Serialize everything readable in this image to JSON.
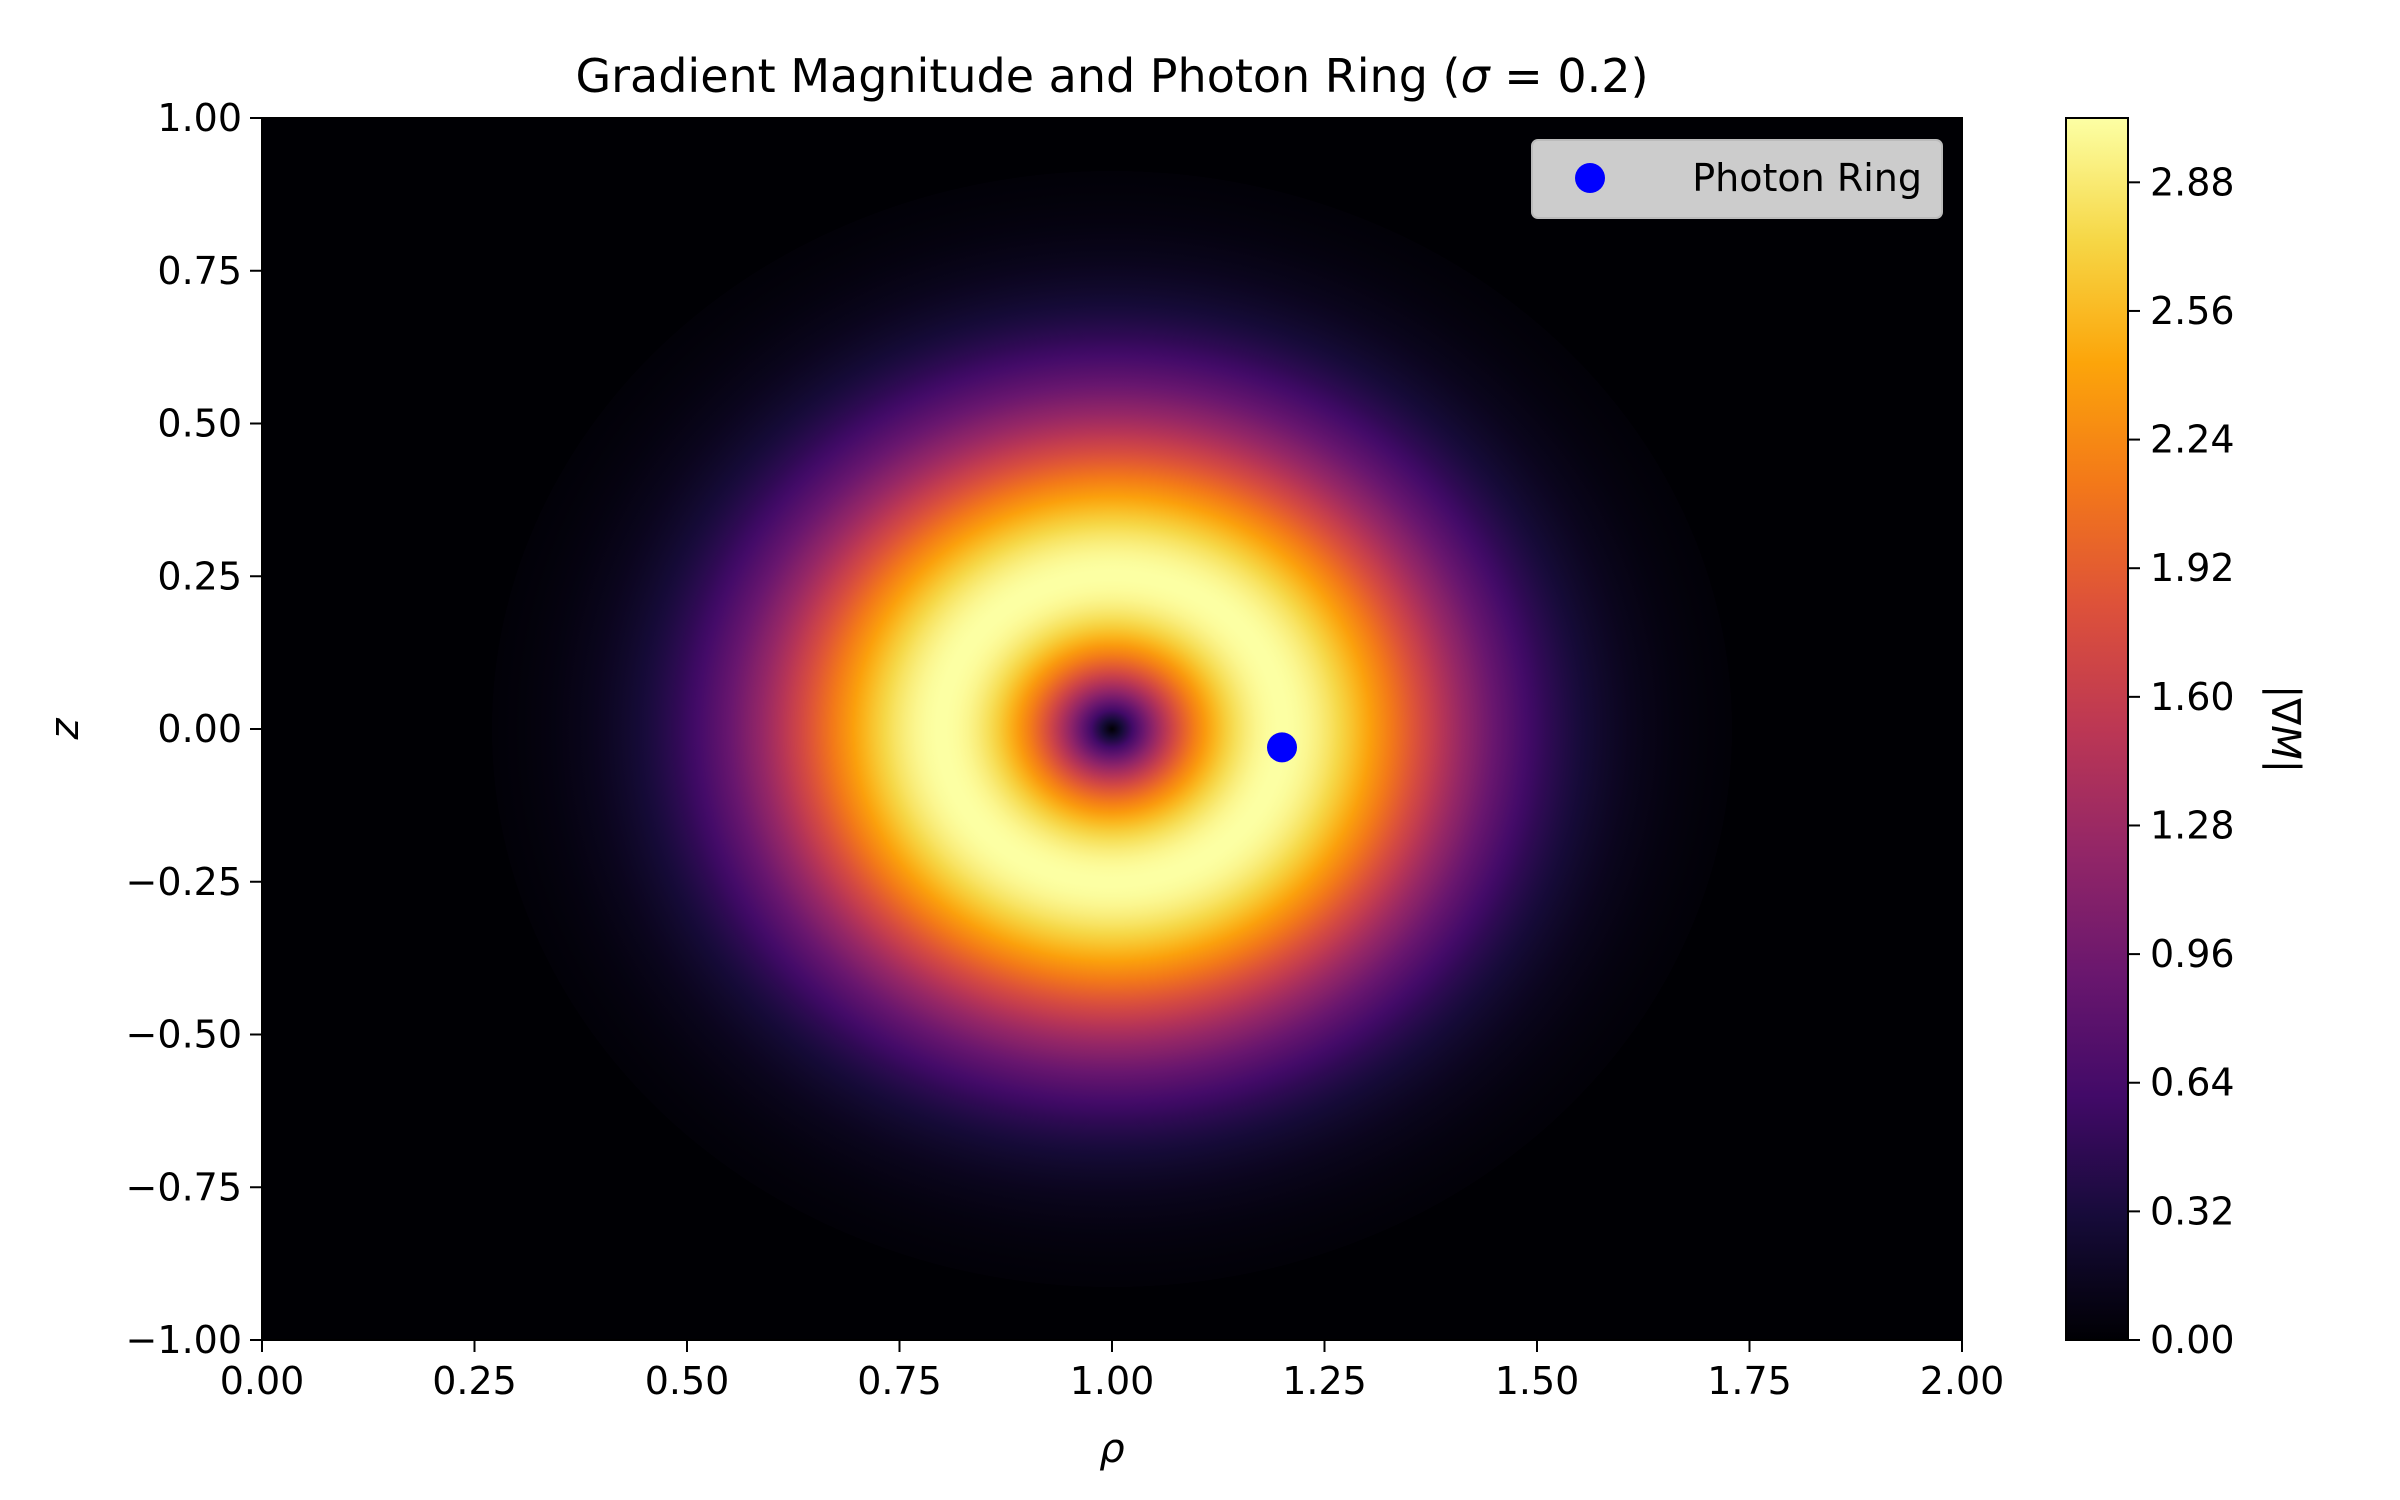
{
  "chart_data": {
    "type": "heatmap",
    "title": "Gradient Magnitude and Photon Ring (σ = 0.2)",
    "title_parts": {
      "prefix": "Gradient Magnitude and Photon Ring (",
      "sigma_symbol": "σ",
      "equals": " = 0.2)"
    },
    "xlabel": "ρ",
    "ylabel": "z",
    "xlim": [
      0.0,
      2.0
    ],
    "ylim": [
      -1.0,
      1.0
    ],
    "x_ticks": [
      "0.00",
      "0.25",
      "0.50",
      "0.75",
      "1.00",
      "1.25",
      "1.50",
      "1.75",
      "2.00"
    ],
    "y_ticks": [
      "1.00",
      "0.75",
      "0.50",
      "0.25",
      "0.00",
      "−0.25",
      "−0.50",
      "−0.75",
      "−1.00"
    ],
    "colormap": "inferno",
    "colorbar": {
      "label": "|∇M|",
      "range": [
        0.0,
        3.04
      ],
      "ticks": [
        "0.00",
        "0.32",
        "0.64",
        "0.96",
        "1.28",
        "1.60",
        "1.92",
        "2.24",
        "2.56",
        "2.88"
      ]
    },
    "field": {
      "description_formula": "|∇M| ∝ r·exp(-r²/(2σ²)) around (ρ=1, z=0)",
      "center": [
        1.0,
        0.0
      ],
      "sigma": 0.2,
      "max_value": 3.04
    },
    "series": [
      {
        "name": "Photon Ring",
        "type": "scatter",
        "color": "#0000ff",
        "points": [
          [
            1.2,
            -0.03
          ]
        ]
      }
    ],
    "legend": {
      "position": "top-right",
      "entries": [
        "Photon Ring"
      ]
    },
    "grid": false
  }
}
